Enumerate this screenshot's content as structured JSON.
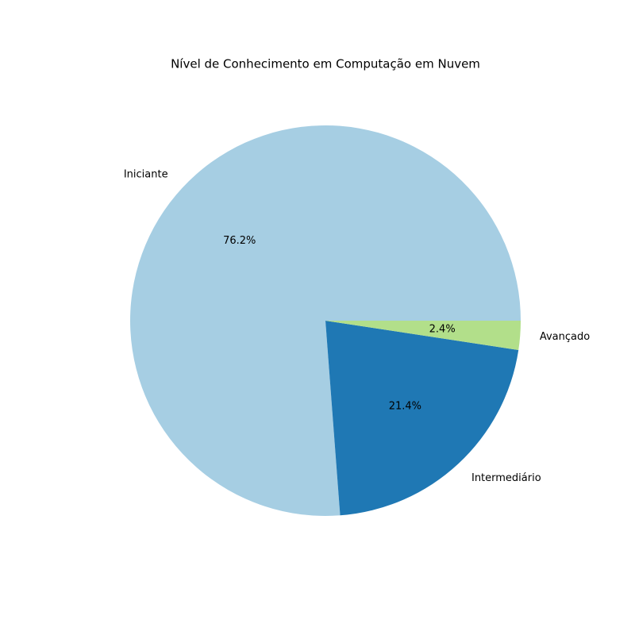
{
  "chart_data": {
    "type": "pie",
    "title": "Nível de Conhecimento em Computação em Nuvem",
    "categories": [
      "Iniciante",
      "Intermediário",
      "Avançado"
    ],
    "values": [
      76.2,
      21.4,
      2.4
    ],
    "value_labels": [
      "76.2%",
      "21.4%",
      "2.4%"
    ],
    "colors": [
      "#a6cee3",
      "#1f78b4",
      "#b2df8a"
    ]
  }
}
